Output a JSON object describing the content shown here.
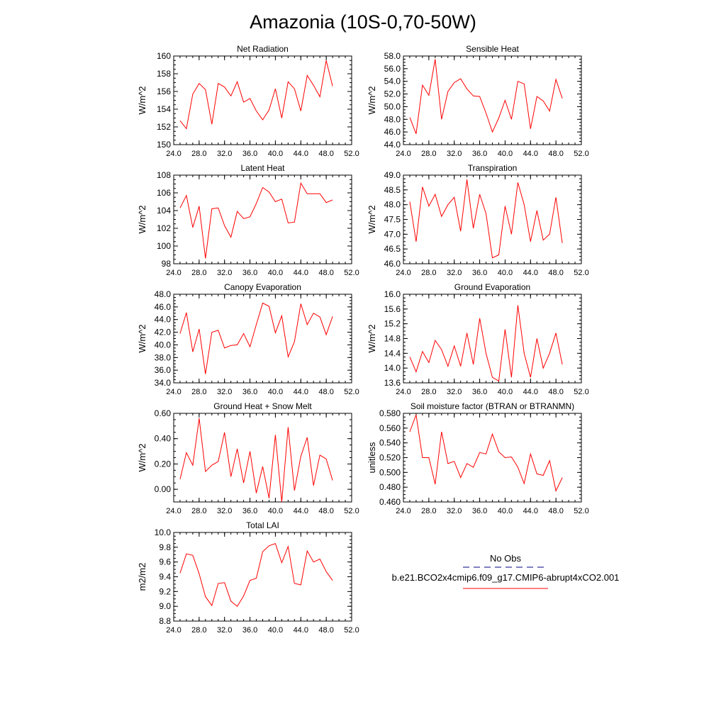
{
  "page_title": "Amazonia (10S-0,70-50W)",
  "x_axis": {
    "min": 24,
    "max": 52,
    "ticks": [
      "24.0",
      "28.0",
      "32.0",
      "36.0",
      "40.0",
      "44.0",
      "48.0",
      "52.0"
    ]
  },
  "years": [
    25,
    26,
    27,
    28,
    29,
    30,
    31,
    32,
    33,
    34,
    35,
    36,
    37,
    38,
    39,
    40,
    41,
    42,
    43,
    44,
    45,
    46,
    47,
    48,
    49
  ],
  "series_color": "#ff0000",
  "obs_color": "#000080",
  "legend": {
    "obs_label": "No Obs",
    "model_label": "b.e21.BCO2x4cmip6.f09_g17.CMIP6-abrupt4xCO2.001"
  },
  "chart_data": [
    {
      "id": "net-radiation",
      "type": "line",
      "title": "Net Radiation",
      "ylabel": "W/m^2",
      "ylim": [
        150,
        160
      ],
      "yticks": [
        150,
        152,
        154,
        156,
        158,
        160
      ],
      "ytick_labels": [
        "150",
        "152",
        "154",
        "156",
        "158",
        "160"
      ],
      "values": [
        152.7,
        151.8,
        155.7,
        156.9,
        156.2,
        152.3,
        156.9,
        156.5,
        155.5,
        157.1,
        154.8,
        155.2,
        153.8,
        152.8,
        153.9,
        156.3,
        153.0,
        157.1,
        156.3,
        153.8,
        157.8,
        156.7,
        155.4,
        159.5,
        156.6
      ]
    },
    {
      "id": "sensible-heat",
      "type": "line",
      "title": "Sensible Heat",
      "ylabel": "W/m^2",
      "ylim": [
        44,
        58
      ],
      "yticks": [
        44,
        46,
        48,
        50,
        52,
        54,
        56,
        58
      ],
      "ytick_labels": [
        "44.0",
        "46.0",
        "48.0",
        "50.0",
        "52.0",
        "54.0",
        "56.0",
        "58.0"
      ],
      "values": [
        48.3,
        45.7,
        53.4,
        51.8,
        57.5,
        48.0,
        52.4,
        53.8,
        54.4,
        52.8,
        51.7,
        51.6,
        49.0,
        46.0,
        48.2,
        51.0,
        48.0,
        54.0,
        53.6,
        46.5,
        51.6,
        50.9,
        49.3,
        54.3,
        51.3
      ]
    },
    {
      "id": "latent-heat",
      "type": "line",
      "title": "Latent Heat",
      "ylabel": "W/m^2",
      "ylim": [
        98,
        108
      ],
      "yticks": [
        98,
        100,
        102,
        104,
        106,
        108
      ],
      "ytick_labels": [
        "98",
        "100",
        "102",
        "104",
        "106",
        "108"
      ],
      "values": [
        104.3,
        105.7,
        102.1,
        104.5,
        98.6,
        104.2,
        104.3,
        102.3,
        101.0,
        103.9,
        103.1,
        103.3,
        104.8,
        106.6,
        106.1,
        105.0,
        105.3,
        102.6,
        102.7,
        107.1,
        105.9,
        105.9,
        105.9,
        104.9,
        105.2
      ]
    },
    {
      "id": "transpiration",
      "type": "line",
      "title": "Transpiration",
      "ylabel": "W/m^2",
      "ylim": [
        46,
        49
      ],
      "yticks": [
        46,
        46.5,
        47,
        47.5,
        48,
        48.5,
        49
      ],
      "ytick_labels": [
        "46.0",
        "46.5",
        "47.0",
        "47.5",
        "48.0",
        "48.5",
        "49.0"
      ],
      "values": [
        48.1,
        46.75,
        48.6,
        47.95,
        48.35,
        47.6,
        48.0,
        48.25,
        47.1,
        48.85,
        47.2,
        48.35,
        47.7,
        46.2,
        46.3,
        47.95,
        47.0,
        48.75,
        48.0,
        46.75,
        47.8,
        46.8,
        47.0,
        48.25,
        46.7
      ]
    },
    {
      "id": "canopy-evaporation",
      "type": "line",
      "title": "Canopy Evaporation",
      "ylabel": "W/m^2",
      "ylim": [
        34,
        48
      ],
      "yticks": [
        34,
        36,
        38,
        40,
        42,
        44,
        46,
        48
      ],
      "ytick_labels": [
        "34.0",
        "36.0",
        "38.0",
        "40.0",
        "42.0",
        "44.0",
        "46.0",
        "48.0"
      ],
      "values": [
        41.8,
        45.1,
        38.9,
        42.5,
        35.4,
        42.0,
        42.3,
        39.5,
        39.9,
        40.0,
        41.8,
        39.7,
        43.2,
        46.6,
        46.1,
        41.9,
        44.6,
        38.1,
        40.5,
        46.5,
        43.2,
        45.0,
        44.4,
        41.6,
        44.5
      ]
    },
    {
      "id": "ground-evaporation",
      "type": "line",
      "title": "Ground Evaporation",
      "ylabel": "W/m^2",
      "ylim": [
        13.6,
        16.0
      ],
      "yticks": [
        13.6,
        14.0,
        14.4,
        14.8,
        15.2,
        15.6,
        16.0
      ],
      "ytick_labels": [
        "13.6",
        "14.0",
        "14.4",
        "14.8",
        "15.2",
        "15.6",
        "16.0"
      ],
      "values": [
        14.3,
        13.9,
        14.45,
        14.15,
        14.75,
        14.5,
        14.05,
        14.6,
        14.05,
        14.95,
        14.1,
        15.35,
        14.4,
        13.75,
        13.65,
        15.05,
        13.75,
        15.7,
        14.4,
        13.75,
        14.8,
        14.0,
        14.4,
        14.95,
        14.1
      ]
    },
    {
      "id": "ground-heat-snow-melt",
      "type": "line",
      "title": "Ground Heat + Snow Melt",
      "ylabel": "W/m^2",
      "ylim": [
        -0.1,
        0.6
      ],
      "yticks": [
        0,
        0.2,
        0.4,
        0.6
      ],
      "ytick_labels": [
        "0.00",
        "0.20",
        "0.40",
        "0.60"
      ],
      "values": [
        0.08,
        0.29,
        0.19,
        0.56,
        0.14,
        0.19,
        0.22,
        0.45,
        0.1,
        0.32,
        0.05,
        0.3,
        -0.03,
        0.18,
        -0.07,
        0.43,
        -0.1,
        0.49,
        -0.01,
        0.26,
        0.41,
        0.03,
        0.27,
        0.24,
        0.07
      ]
    },
    {
      "id": "soil-moisture-factor",
      "type": "line",
      "title": "Soil moisture factor (BTRAN or BTRANMN)",
      "ylabel": "unitless",
      "ylim": [
        0.46,
        0.58
      ],
      "yticks": [
        0.46,
        0.48,
        0.5,
        0.52,
        0.54,
        0.56,
        0.58
      ],
      "ytick_labels": [
        "0.460",
        "0.480",
        "0.500",
        "0.520",
        "0.540",
        "0.560",
        "0.580"
      ],
      "values": [
        0.555,
        0.578,
        0.52,
        0.52,
        0.484,
        0.555,
        0.512,
        0.515,
        0.493,
        0.512,
        0.507,
        0.527,
        0.525,
        0.552,
        0.528,
        0.52,
        0.521,
        0.507,
        0.485,
        0.525,
        0.498,
        0.496,
        0.516,
        0.475,
        0.493
      ]
    },
    {
      "id": "total-lai",
      "type": "line",
      "title": "Total LAI",
      "ylabel": "m2/m2",
      "ylim": [
        8.8,
        10.0
      ],
      "yticks": [
        8.8,
        9.0,
        9.2,
        9.4,
        9.6,
        9.8,
        10.0
      ],
      "ytick_labels": [
        "8.8",
        "9.0",
        "9.2",
        "9.4",
        "9.6",
        "9.8",
        "10.0"
      ],
      "values": [
        9.45,
        9.71,
        9.69,
        9.44,
        9.13,
        9.01,
        9.31,
        9.32,
        9.07,
        9.0,
        9.14,
        9.35,
        9.38,
        9.74,
        9.82,
        9.85,
        9.59,
        9.81,
        9.31,
        9.29,
        9.75,
        9.6,
        9.64,
        9.47,
        9.35
      ]
    }
  ]
}
